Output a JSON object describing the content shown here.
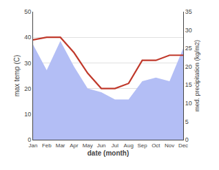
{
  "chart_data": {
    "type": "line",
    "xlabel": "date (month)",
    "ylabel": "max temp (C)",
    "y2label": "med. precipitation (kg/m2)",
    "categories": [
      "Jan",
      "Feb",
      "Mar",
      "Apr",
      "May",
      "Jun",
      "Jul",
      "Aug",
      "Sep",
      "Oct",
      "Nov",
      "Dec"
    ],
    "series": [
      {
        "type": "line",
        "color": "#c0392b",
        "values": [
          39,
          40,
          40,
          34,
          26,
          20,
          20,
          22,
          31,
          31,
          33,
          33
        ]
      },
      {
        "type": "area",
        "color": "#b3bef5",
        "axis": "y2",
        "values": [
          26,
          19,
          27,
          20,
          14,
          13,
          11,
          11,
          16,
          17,
          16,
          25
        ]
      }
    ],
    "ylim": [
      0,
      50
    ],
    "yticks": [
      0,
      10,
      20,
      30,
      40,
      50
    ],
    "y2lim": [
      0,
      35
    ],
    "y2ticks": [
      0,
      5,
      10,
      15,
      20,
      25,
      30,
      35
    ],
    "grid": true
  }
}
